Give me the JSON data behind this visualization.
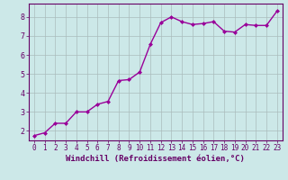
{
  "x": [
    0,
    1,
    2,
    3,
    4,
    5,
    6,
    7,
    8,
    9,
    10,
    11,
    12,
    13,
    14,
    15,
    16,
    17,
    18,
    19,
    20,
    21,
    22,
    23
  ],
  "y": [
    1.75,
    1.9,
    2.4,
    2.4,
    3.0,
    3.0,
    3.4,
    3.55,
    4.65,
    4.7,
    5.1,
    6.55,
    7.7,
    8.0,
    7.75,
    7.6,
    7.65,
    7.75,
    7.25,
    7.2,
    7.6,
    7.55,
    7.55,
    8.3
  ],
  "line_color": "#990099",
  "marker": "D",
  "marker_size": 2.0,
  "bg_color": "#cce8e8",
  "grid_color": "#aabcbc",
  "xlim": [
    -0.5,
    23.5
  ],
  "ylim": [
    1.5,
    8.7
  ],
  "xticks": [
    0,
    1,
    2,
    3,
    4,
    5,
    6,
    7,
    8,
    9,
    10,
    11,
    12,
    13,
    14,
    15,
    16,
    17,
    18,
    19,
    20,
    21,
    22,
    23
  ],
  "yticks": [
    2,
    3,
    4,
    5,
    6,
    7,
    8
  ],
  "tick_color": "#660066",
  "xlabel": "Windchill (Refroidissement éolien,°C)",
  "xlabel_color": "#660066",
  "tick_fontsize": 5.5,
  "xlabel_fontsize": 6.5,
  "spine_color": "#660066",
  "linewidth": 1.0
}
